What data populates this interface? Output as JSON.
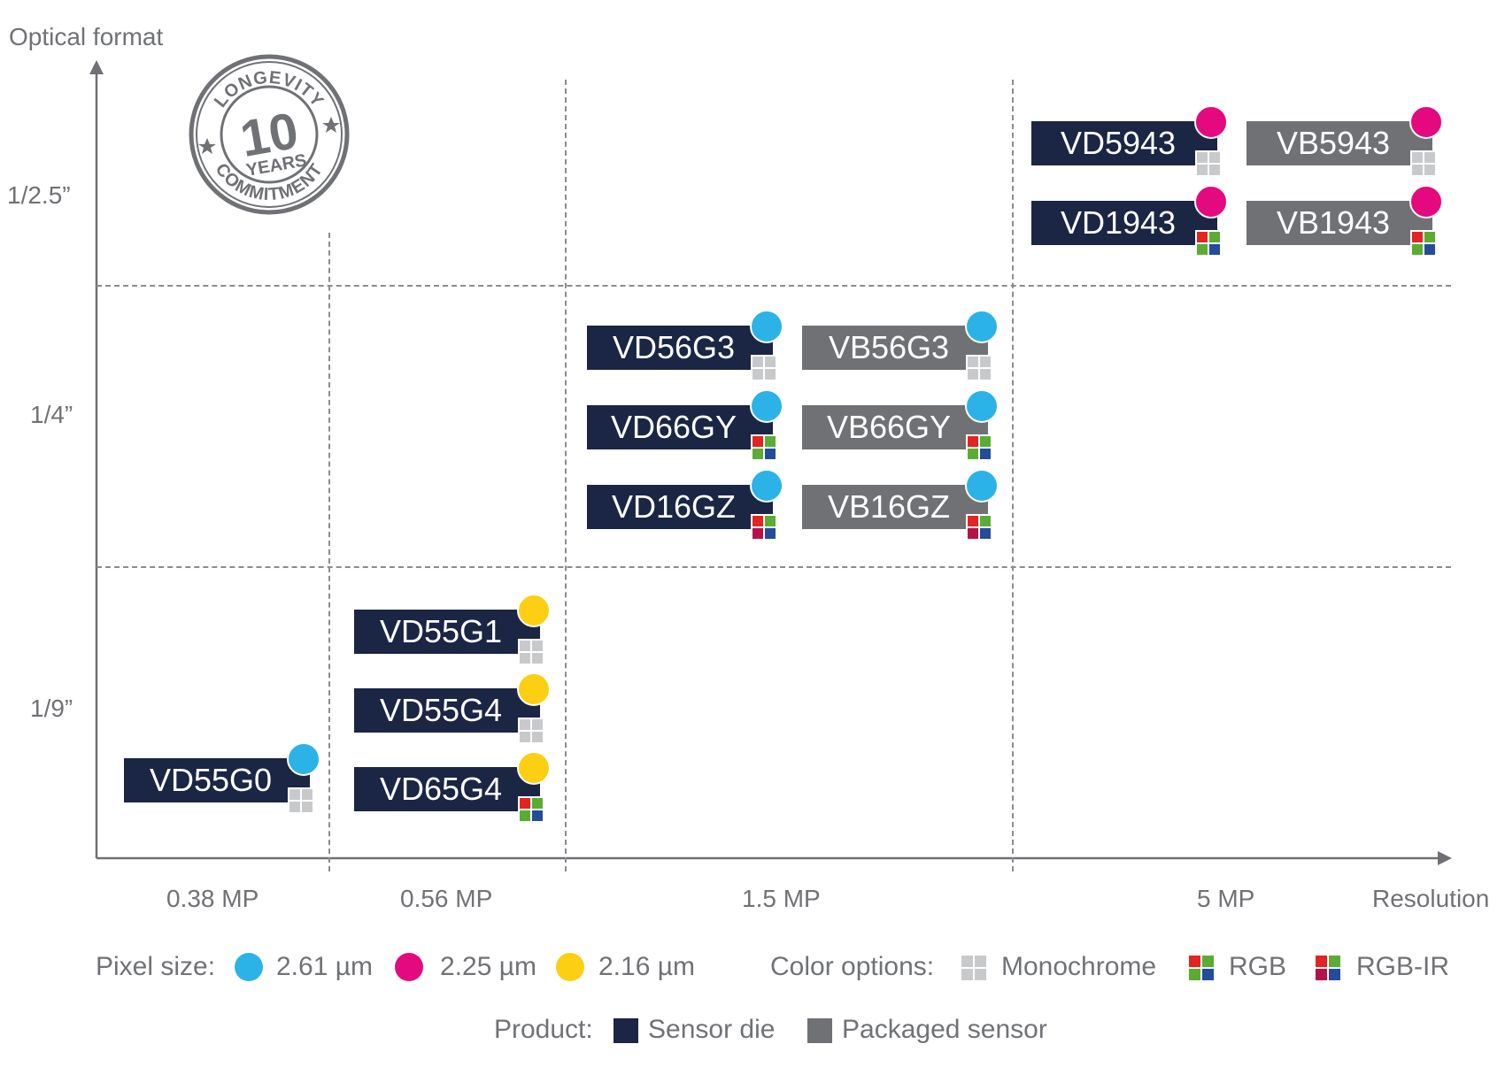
{
  "axes": {
    "y_title": "Optical format",
    "x_title": "Resolution",
    "y_labels": [
      "1/2.5”",
      "1/4”",
      "1/9”"
    ],
    "x_labels": [
      "0.38 MP",
      "0.56 MP",
      "1.5 MP",
      "5 MP"
    ]
  },
  "badge": {
    "top": "LONGEVITY",
    "number": "10",
    "middle": "YEARS",
    "bottom": "COMMITMENT"
  },
  "colors": {
    "die": "#1b2544",
    "packaged": "#6f7175",
    "pixel_261": "#2bb3e8",
    "pixel_225": "#e5097f",
    "pixel_216": "#fccf12",
    "mono": "#c8c9cb",
    "red": "#e42421",
    "green": "#5aac33",
    "blue": "#244b9c",
    "crimson": "#b6124a"
  },
  "products": [
    {
      "name": "VD5943",
      "type": "die",
      "pixel": "2.25 µm",
      "color": "Monochrome"
    },
    {
      "name": "VB5943",
      "type": "packaged",
      "pixel": "2.25 µm",
      "color": "Monochrome"
    },
    {
      "name": "VD1943",
      "type": "die",
      "pixel": "2.25 µm",
      "color": "RGB"
    },
    {
      "name": "VB1943",
      "type": "packaged",
      "pixel": "2.25 µm",
      "color": "RGB"
    },
    {
      "name": "VD56G3",
      "type": "die",
      "pixel": "2.61 µm",
      "color": "Monochrome"
    },
    {
      "name": "VB56G3",
      "type": "packaged",
      "pixel": "2.61 µm",
      "color": "Monochrome"
    },
    {
      "name": "VD66GY",
      "type": "die",
      "pixel": "2.61 µm",
      "color": "RGB"
    },
    {
      "name": "VB66GY",
      "type": "packaged",
      "pixel": "2.61 µm",
      "color": "RGB"
    },
    {
      "name": "VD16GZ",
      "type": "die",
      "pixel": "2.61 µm",
      "color": "RGB-IR"
    },
    {
      "name": "VB16GZ",
      "type": "packaged",
      "pixel": "2.61 µm",
      "color": "RGB-IR"
    },
    {
      "name": "VD55G1",
      "type": "die",
      "pixel": "2.16 µm",
      "color": "Monochrome"
    },
    {
      "name": "VD55G4",
      "type": "die",
      "pixel": "2.16 µm",
      "color": "Monochrome"
    },
    {
      "name": "VD65G4",
      "type": "die",
      "pixel": "2.16 µm",
      "color": "RGB"
    },
    {
      "name": "VD55G0",
      "type": "die",
      "pixel": "2.61 µm",
      "color": "Monochrome"
    }
  ],
  "legend": {
    "pixel_label": "Pixel size:",
    "pixel_sizes": [
      "2.61 µm",
      "2.25 µm",
      "2.16 µm"
    ],
    "color_label": "Color options:",
    "color_options": [
      "Monochrome",
      "RGB",
      "RGB-IR"
    ],
    "product_label": "Product:",
    "product_types": [
      "Sensor die",
      "Packaged sensor"
    ]
  }
}
